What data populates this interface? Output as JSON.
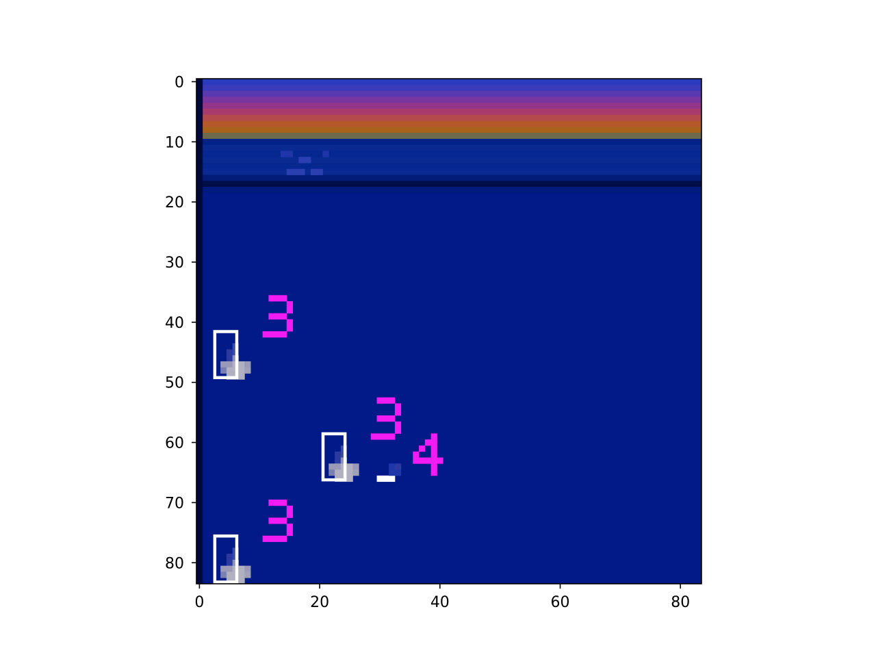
{
  "chart_data": {
    "type": "heatmap",
    "description_kind": "image frame displayed on pixel axes",
    "x_range": [
      -0.5,
      83.5
    ],
    "y_range": [
      83.5,
      -0.5
    ],
    "x_ticks": [
      0,
      20,
      40,
      60,
      80
    ],
    "y_ticks": [
      0,
      10,
      20,
      30,
      40,
      50,
      60,
      70,
      80
    ],
    "x_tick_labels": [
      "0",
      "20",
      "40",
      "60",
      "80"
    ],
    "y_tick_labels": [
      "0",
      "10",
      "20",
      "30",
      "40",
      "50",
      "60",
      "70",
      "80"
    ],
    "background_color": "#021a87",
    "sky_bands": [
      {
        "row": 0,
        "color": "#2a3bbd"
      },
      {
        "row": 1,
        "color": "#3a3abc"
      },
      {
        "row": 2,
        "color": "#5a3ab0"
      },
      {
        "row": 3,
        "color": "#7a36a0"
      },
      {
        "row": 4,
        "color": "#94358a"
      },
      {
        "row": 5,
        "color": "#a83a6c"
      },
      {
        "row": 6,
        "color": "#b44a4c"
      },
      {
        "row": 7,
        "color": "#b4582a"
      },
      {
        "row": 8,
        "color": "#a8621e"
      },
      {
        "row": 9,
        "color": "#6e6a4e"
      },
      {
        "row": 10,
        "color": "#022288"
      },
      {
        "row": 11,
        "color": "#0a2a92"
      },
      {
        "row": 12,
        "color": "#062690"
      },
      {
        "row": 13,
        "color": "#0a2a92"
      },
      {
        "row": 14,
        "color": "#062690"
      },
      {
        "row": 15,
        "color": "#0a2a92"
      },
      {
        "row": 16,
        "color": "#021c78"
      },
      {
        "row": 17,
        "color": "#000e48"
      },
      {
        "row": 18,
        "color": "#021a7e"
      }
    ],
    "left_border_color": "#000a3a",
    "players": [
      {
        "x": 2.5,
        "y": 41.5,
        "label": "3"
      },
      {
        "x": 20.5,
        "y": 58.5,
        "label": "3"
      },
      {
        "x": 2.5,
        "y": 75.5,
        "label": "3"
      }
    ],
    "extra_label": {
      "text": "4",
      "x": 36,
      "y": 63
    }
  }
}
